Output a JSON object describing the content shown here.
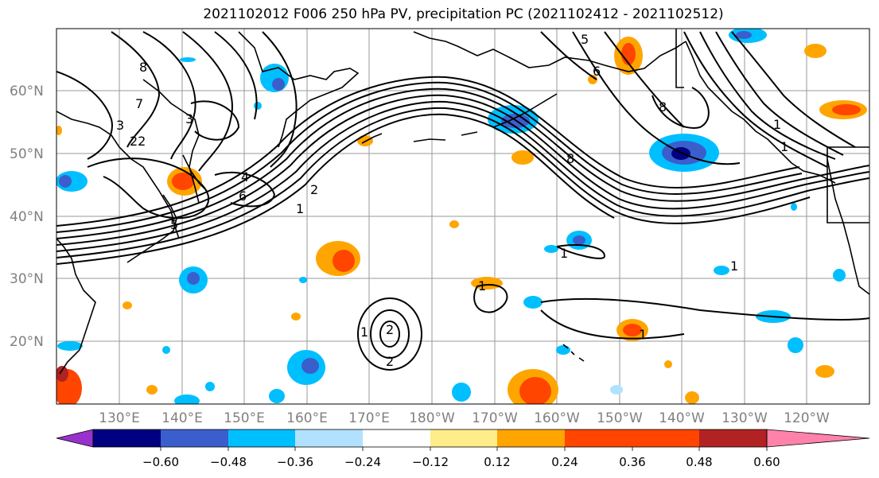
{
  "title": "2021102012 F006 250 hPa PV, precipitation PC (2021102412 - 2021102512)",
  "map": {
    "lon_labels": [
      "130°E",
      "140°E",
      "150°E",
      "160°E",
      "170°E",
      "180°W",
      "170°W",
      "160°W",
      "150°W",
      "140°W",
      "130°W",
      "120°W"
    ],
    "lat_labels": [
      "60°N",
      "50°N",
      "40°N",
      "30°N",
      "20°N"
    ],
    "pv_contour_labels": [
      "8",
      "7",
      "3",
      "22",
      "3",
      "4",
      "6",
      "5",
      "1",
      "2",
      "1",
      "2",
      "2",
      "1",
      "1",
      "1",
      "5",
      "6",
      "8",
      "8",
      "1",
      "1",
      "1"
    ]
  },
  "colorbar": {
    "ticks": [
      "−0.60",
      "−0.48",
      "−0.36",
      "−0.24",
      "−0.12",
      "0.12",
      "0.24",
      "0.36",
      "0.48",
      "0.60"
    ],
    "colors": [
      "#9932cc",
      "#000080",
      "#3a5fcd",
      "#00bfff",
      "#b0e2ff",
      "#ffffff",
      "#ffec8b",
      "#ffa500",
      "#ff4500",
      "#b22222",
      "#ff82ab"
    ]
  }
}
